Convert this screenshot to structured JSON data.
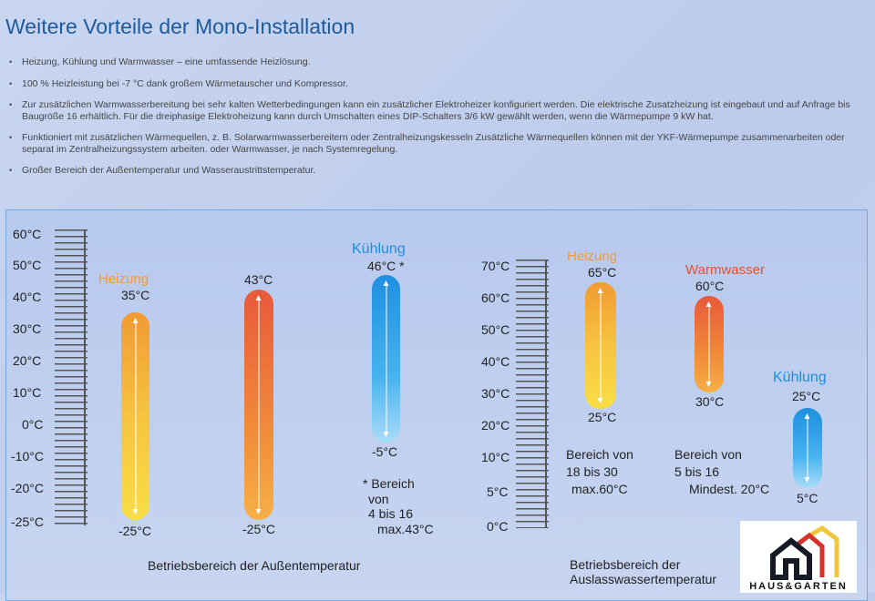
{
  "title": "Weitere Vorteile der Mono-Installation",
  "bullets": [
    "Heizung, Kühlung und Warmwasser – eine umfassende Heizlösung.",
    "100 % Heizleistung bei -7 °C dank großem Wärmetauscher und Kompressor.",
    "Zur zusätzlichen Warmwasserbereitung bei sehr kalten Wetterbedingungen kann ein zusätzlicher Elektroheizer konfiguriert werden. Die elektrische Zusatzheizung ist eingebaut und auf Anfrage bis Baugröße 16 erhältlich. Für die dreiphasige Elektroheizung kann durch Umschalten eines DIP-Schalters 3/6 kW gewählt werden, wenn die Wärmepumpe 9 kW hat.",
    "Funktioniert mit zusätzlichen Wärmequellen, z. B. Solarwarmwasserbereitern oder Zentralheizungskesseln Zusätzliche Wärmequellen können mit der YKF-Wärmepumpe zusammenarbeiten oder separat im Zentralheizungssystem arbeiten. oder Warmwasser, je nach Systemregelung.",
    "Großer Bereich der Außentemperatur und Wasseraustrittstemperatur."
  ],
  "left": {
    "axis": [
      "60°C",
      "50°C",
      "40°C",
      "30°C",
      "20°C",
      "10°C",
      "0°C",
      "-10°C",
      "-20°C",
      "-25°C"
    ],
    "caption": "Betriebsbereich der Außentemperatur",
    "heizung": {
      "name": "Heizung",
      "max": "35°C",
      "min": "-25°C"
    },
    "warmwasser": {
      "max": "43°C",
      "min": "-25°C"
    },
    "kuehlung": {
      "name": "Kühlung",
      "max": "46°C *",
      "min": "-5°C",
      "note": [
        "* Bereich",
        "von",
        "4 bis 16",
        "max.43°C"
      ]
    }
  },
  "right": {
    "axis": [
      "70°C",
      "60°C",
      "50°C",
      "40°C",
      "30°C",
      "20°C",
      "10°C",
      "5°C",
      "0°C"
    ],
    "caption": [
      "Betriebsbereich der",
      "Auslasswassertemperatur"
    ],
    "heizung": {
      "name": "Heizung",
      "max": "65°C",
      "min": "25°C",
      "note": [
        "Bereich von",
        "18 bis 30",
        "max.60°C"
      ]
    },
    "warmwasser": {
      "name": "Warmwasser",
      "max": "60°C",
      "min": "30°C",
      "note": [
        "Bereich von",
        "5 bis 16",
        "Mindest. 20°C"
      ]
    },
    "kuehlung": {
      "name": "Kühlung",
      "max": "25°C",
      "min": "5°C"
    }
  },
  "logo": {
    "text": "HAUS&GARTEN"
  },
  "colors": {
    "title": "#1f5a9c",
    "heizung": "#f29a35",
    "warmwasser": "#e4502e",
    "kuehlung": "#1d8fe0"
  }
}
